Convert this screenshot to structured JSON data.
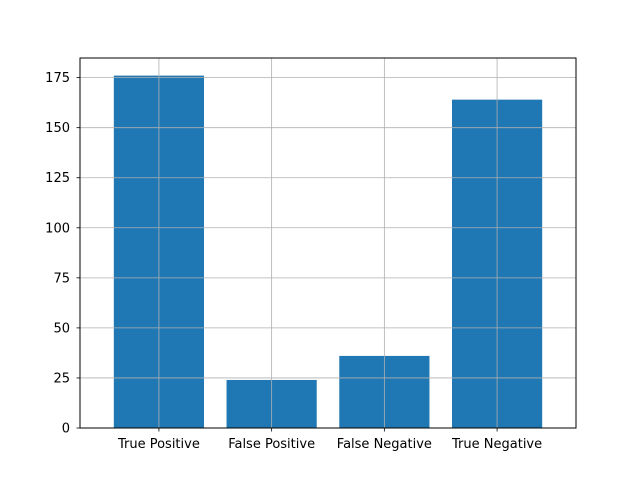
{
  "chart_data": {
    "type": "bar",
    "title": "",
    "xlabel": "",
    "ylabel": "",
    "categories": [
      "True Positive",
      "False Positive",
      "False Negative",
      "True Negative"
    ],
    "values": [
      176,
      24,
      36,
      164
    ],
    "ylim": [
      0,
      184.8
    ],
    "yticks": [
      0,
      25,
      50,
      75,
      100,
      125,
      150,
      175
    ],
    "grid": true,
    "legend": "none",
    "colors": {
      "bar": "#1f77b4",
      "grid": "#b0b0b0",
      "axis": "#000000",
      "background": "#ffffff"
    }
  }
}
